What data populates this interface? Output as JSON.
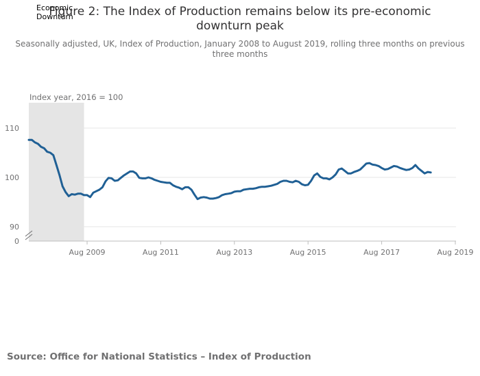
{
  "title_lines": [
    "Figure 2: The Index of Production remains below its pre-economic",
    "downturn peak"
  ],
  "subtitle": "Seasonally adjusted, UK, Index of Production, January 2008 to August 2019, rolling three months on previous three months",
  "annotation_lines": [
    "Economic",
    "Downturn"
  ],
  "source": "Source: Office for National Statistics – Index of Production",
  "colors": {
    "line": "#206095",
    "shade": "#e5e5e5",
    "grid": "#e5e5e5",
    "text": "#707071"
  },
  "chart_data": {
    "type": "line",
    "unit_label": "Index year, 2016 = 100",
    "y_ticks": [
      {
        "value": 110,
        "label": "110"
      },
      {
        "value": 100,
        "label": "100"
      },
      {
        "value": 90,
        "label": "90"
      }
    ],
    "y_zero_label": "0",
    "y_axis_break": true,
    "ylim": [
      88,
      115
    ],
    "x_range": [
      "2008-01",
      "2019-08"
    ],
    "x_ticks": [
      {
        "date": "2009-08",
        "label": "Aug 2009"
      },
      {
        "date": "2011-08",
        "label": "Aug 2011"
      },
      {
        "date": "2013-08",
        "label": "Aug 2013"
      },
      {
        "date": "2015-08",
        "label": "Aug 2015"
      },
      {
        "date": "2017-08",
        "label": "Aug 2017"
      },
      {
        "date": "2019-08",
        "label": "Aug 2019"
      }
    ],
    "shaded_period": {
      "start": "2008-01",
      "end": "2009-07",
      "label_lines": [
        "Economic",
        "Downturn"
      ]
    },
    "grid": true,
    "series": [
      {
        "points": [
          [
            "2008-01",
            107.6
          ],
          [
            "2008-02",
            107.6
          ],
          [
            "2008-03",
            107.1
          ],
          [
            "2008-04",
            106.8
          ],
          [
            "2008-05",
            106.2
          ],
          [
            "2008-06",
            105.9
          ],
          [
            "2008-07",
            105.2
          ],
          [
            "2008-08",
            105.0
          ],
          [
            "2008-09",
            104.5
          ],
          [
            "2008-10",
            102.5
          ],
          [
            "2008-11",
            100.5
          ],
          [
            "2008-12",
            98.2
          ],
          [
            "2009-01",
            97.0
          ],
          [
            "2009-02",
            96.2
          ],
          [
            "2009-03",
            96.6
          ],
          [
            "2009-04",
            96.5
          ],
          [
            "2009-05",
            96.7
          ],
          [
            "2009-06",
            96.7
          ],
          [
            "2009-07",
            96.4
          ],
          [
            "2009-08",
            96.4
          ],
          [
            "2009-09",
            96.0
          ],
          [
            "2009-10",
            96.9
          ],
          [
            "2009-11",
            97.2
          ],
          [
            "2009-12",
            97.5
          ],
          [
            "2010-01",
            98.0
          ],
          [
            "2010-02",
            99.2
          ],
          [
            "2010-03",
            99.9
          ],
          [
            "2010-04",
            99.8
          ],
          [
            "2010-05",
            99.3
          ],
          [
            "2010-06",
            99.4
          ],
          [
            "2010-07",
            99.9
          ],
          [
            "2010-08",
            100.4
          ],
          [
            "2010-09",
            100.8
          ],
          [
            "2010-10",
            101.2
          ],
          [
            "2010-11",
            101.2
          ],
          [
            "2010-12",
            100.8
          ],
          [
            "2011-01",
            99.9
          ],
          [
            "2011-02",
            99.8
          ],
          [
            "2011-03",
            99.8
          ],
          [
            "2011-04",
            100.0
          ],
          [
            "2011-05",
            99.8
          ],
          [
            "2011-06",
            99.5
          ],
          [
            "2011-07",
            99.3
          ],
          [
            "2011-08",
            99.1
          ],
          [
            "2011-09",
            99.0
          ],
          [
            "2011-10",
            98.9
          ],
          [
            "2011-11",
            98.9
          ],
          [
            "2011-12",
            98.4
          ],
          [
            "2012-01",
            98.1
          ],
          [
            "2012-02",
            97.9
          ],
          [
            "2012-03",
            97.6
          ],
          [
            "2012-04",
            98.0
          ],
          [
            "2012-05",
            98.0
          ],
          [
            "2012-06",
            97.5
          ],
          [
            "2012-07",
            96.5
          ],
          [
            "2012-08",
            95.6
          ],
          [
            "2012-09",
            95.9
          ],
          [
            "2012-10",
            96.0
          ],
          [
            "2012-11",
            95.9
          ],
          [
            "2012-12",
            95.7
          ],
          [
            "2013-01",
            95.7
          ],
          [
            "2013-02",
            95.8
          ],
          [
            "2013-03",
            96.0
          ],
          [
            "2013-04",
            96.4
          ],
          [
            "2013-05",
            96.6
          ],
          [
            "2013-06",
            96.7
          ],
          [
            "2013-07",
            96.8
          ],
          [
            "2013-08",
            97.1
          ],
          [
            "2013-09",
            97.2
          ],
          [
            "2013-10",
            97.2
          ],
          [
            "2013-11",
            97.5
          ],
          [
            "2013-12",
            97.6
          ],
          [
            "2014-01",
            97.7
          ],
          [
            "2014-02",
            97.7
          ],
          [
            "2014-03",
            97.8
          ],
          [
            "2014-04",
            98.0
          ],
          [
            "2014-05",
            98.1
          ],
          [
            "2014-06",
            98.1
          ],
          [
            "2014-07",
            98.2
          ],
          [
            "2014-08",
            98.3
          ],
          [
            "2014-09",
            98.5
          ],
          [
            "2014-10",
            98.7
          ],
          [
            "2014-11",
            99.1
          ],
          [
            "2014-12",
            99.3
          ],
          [
            "2015-01",
            99.3
          ],
          [
            "2015-02",
            99.1
          ],
          [
            "2015-03",
            99.0
          ],
          [
            "2015-04",
            99.3
          ],
          [
            "2015-05",
            99.1
          ],
          [
            "2015-06",
            98.6
          ],
          [
            "2015-07",
            98.4
          ],
          [
            "2015-08",
            98.5
          ],
          [
            "2015-09",
            99.3
          ],
          [
            "2015-10",
            100.4
          ],
          [
            "2015-11",
            100.8
          ],
          [
            "2015-12",
            100.1
          ],
          [
            "2016-01",
            99.8
          ],
          [
            "2016-02",
            99.8
          ],
          [
            "2016-03",
            99.6
          ],
          [
            "2016-04",
            100.0
          ],
          [
            "2016-05",
            100.6
          ],
          [
            "2016-06",
            101.6
          ],
          [
            "2016-07",
            101.8
          ],
          [
            "2016-08",
            101.3
          ],
          [
            "2016-09",
            100.8
          ],
          [
            "2016-10",
            100.8
          ],
          [
            "2016-11",
            101.1
          ],
          [
            "2016-12",
            101.3
          ],
          [
            "2017-01",
            101.6
          ],
          [
            "2017-02",
            102.2
          ],
          [
            "2017-03",
            102.8
          ],
          [
            "2017-04",
            102.9
          ],
          [
            "2017-05",
            102.6
          ],
          [
            "2017-06",
            102.5
          ],
          [
            "2017-07",
            102.3
          ],
          [
            "2017-08",
            101.9
          ],
          [
            "2017-09",
            101.6
          ],
          [
            "2017-10",
            101.7
          ],
          [
            "2017-11",
            102.0
          ],
          [
            "2017-12",
            102.3
          ],
          [
            "2018-01",
            102.2
          ],
          [
            "2018-02",
            101.9
          ],
          [
            "2018-03",
            101.7
          ],
          [
            "2018-04",
            101.5
          ],
          [
            "2018-05",
            101.6
          ],
          [
            "2018-06",
            101.9
          ],
          [
            "2018-07",
            102.5
          ],
          [
            "2018-08",
            101.8
          ],
          [
            "2018-09",
            101.3
          ],
          [
            "2018-10",
            100.8
          ],
          [
            "2018-11",
            101.1
          ],
          [
            "2018-12",
            101.0
          ]
        ]
      }
    ]
  }
}
